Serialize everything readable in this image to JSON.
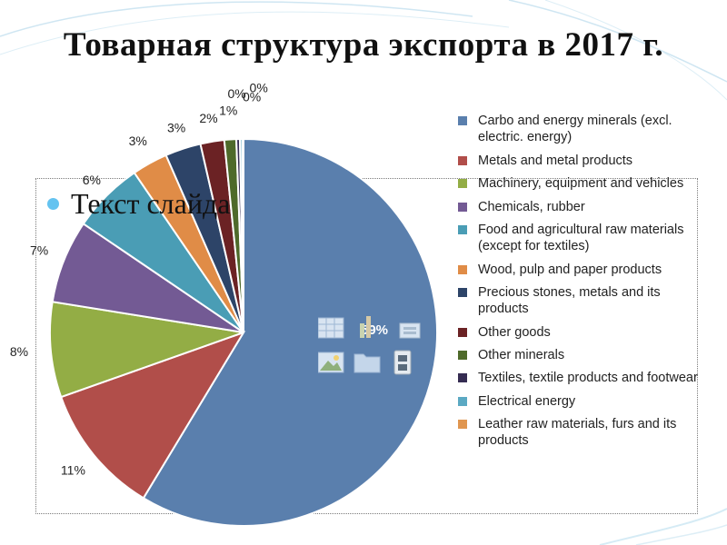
{
  "slide": {
    "title": "Товарная структура экспорта в 2017 г.",
    "placeholder_text": "Текст слайда"
  },
  "chart_data": {
    "type": "pie",
    "title": "",
    "categories": [
      "Carbo and energy minerals (excl. electric. energy)",
      "Metals and metal products",
      "Machinery, equipment and vehicles",
      "Chemicals, rubber",
      "Food and agricultural raw materials (except for textiles)",
      "Wood, pulp and paper products",
      "Precious stones, metals and its products",
      "Other goods",
      "Other minerals",
      "Textiles, textile products and footwear",
      "Electrical energy",
      "Leather raw materials, furs and its products"
    ],
    "values": [
      59,
      11,
      8,
      7,
      6,
      3,
      3,
      2,
      1,
      0.3,
      0.2,
      0.1
    ],
    "labels": [
      "59%",
      "11%",
      "8%",
      "7%",
      "6%",
      "3%",
      "3%",
      "2%",
      "1%",
      "0%",
      "0%",
      "0%"
    ],
    "colors": [
      "#5a7fad",
      "#b14e4a",
      "#93ad45",
      "#735a94",
      "#4a9db5",
      "#e08c47",
      "#2d4468",
      "#6b2224",
      "#4e6a2a",
      "#352c52",
      "#5ba9c3",
      "#e09650"
    ],
    "legend_position": "right"
  }
}
